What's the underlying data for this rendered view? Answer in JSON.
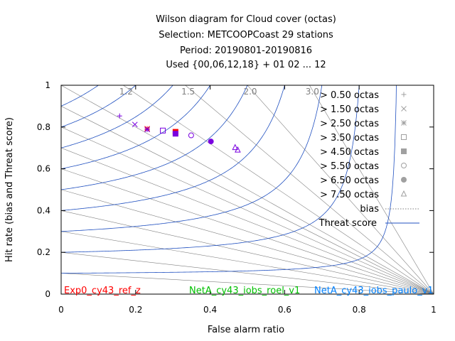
{
  "chart_data": {
    "type": "scatter",
    "title_lines": [
      "Wilson diagram  for Cloud cover (octas)",
      "Selection: METCOOPCoast     29 stations",
      "Period: 20190801-20190816",
      "Used {00,06,12,18} + 01 02 ... 12"
    ],
    "xlabel": "False alarm ratio",
    "ylabel": "Hit rate (bias and Threat score)",
    "xlim": [
      0,
      1
    ],
    "ylim": [
      0,
      1
    ],
    "x_ticks": [
      "0",
      "0.2",
      "0.4",
      "0.6",
      "0.8",
      "1"
    ],
    "y_ticks": [
      "0",
      "0.2",
      "0.4",
      "0.6",
      "0.8",
      "1"
    ],
    "bias_labels": [
      "1.2",
      "1.5",
      "2.0",
      "3.0"
    ],
    "bias_values": [
      0.1,
      0.2,
      0.3,
      0.4,
      0.5,
      0.6,
      0.7,
      0.8,
      0.9,
      1.0,
      1.2,
      1.5,
      2.0,
      3.0
    ],
    "threat_score_values": [
      0.1,
      0.2,
      0.3,
      0.4,
      0.5,
      0.6,
      0.7,
      0.8,
      0.9
    ],
    "legend": {
      "entries": [
        "> 0.50 octas",
        "> 1.50 octas",
        "> 2.50 octas",
        "> 3.50 octas",
        "> 4.50 octas",
        "> 5.50 octas",
        "> 6.50 octas",
        "> 7.50 octas"
      ],
      "bias_label": "bias",
      "ts_label": "Threat score"
    },
    "experiments": [
      {
        "name": "Exp0_cy43_ref_z",
        "color": "#ff0000"
      },
      {
        "name": "NetA_cy43_iobs_roel_v1",
        "color": "#00c000"
      },
      {
        "name": "NetA_cy43_iobs_paulo_v1",
        "color": "#0080ff"
      }
    ],
    "series": [
      {
        "name": "> 0.50 octas",
        "marker": "plus",
        "points": [
          {
            "x": 0.157,
            "y": 0.853,
            "color": "#7a00e0"
          }
        ]
      },
      {
        "name": "> 1.50 octas",
        "marker": "cross",
        "points": [
          {
            "x": 0.198,
            "y": 0.812,
            "color": "#7a00e0"
          }
        ]
      },
      {
        "name": "> 2.50 octas",
        "marker": "star",
        "points": [
          {
            "x": 0.231,
            "y": 0.792,
            "color": "#ff0000"
          },
          {
            "x": 0.231,
            "y": 0.788,
            "color": "#7a00e0"
          }
        ]
      },
      {
        "name": "> 3.50 octas",
        "marker": "square",
        "points": [
          {
            "x": 0.273,
            "y": 0.783,
            "color": "#7a00e0"
          }
        ]
      },
      {
        "name": "> 4.50 octas",
        "marker": "fsquare",
        "points": [
          {
            "x": 0.307,
            "y": 0.777,
            "color": "#ff0000"
          },
          {
            "x": 0.307,
            "y": 0.768,
            "color": "#7a00e0"
          }
        ]
      },
      {
        "name": "> 5.50 octas",
        "marker": "circle",
        "points": [
          {
            "x": 0.349,
            "y": 0.76,
            "color": "#7a00e0"
          }
        ]
      },
      {
        "name": "> 6.50 octas",
        "marker": "fcircle",
        "points": [
          {
            "x": 0.402,
            "y": 0.731,
            "color": "#7a00e0"
          }
        ]
      },
      {
        "name": "> 7.50 octas",
        "marker": "triangle",
        "points": [
          {
            "x": 0.467,
            "y": 0.702,
            "color": "#7a00e0"
          },
          {
            "x": 0.474,
            "y": 0.69,
            "color": "#7a00e0"
          }
        ]
      }
    ]
  }
}
